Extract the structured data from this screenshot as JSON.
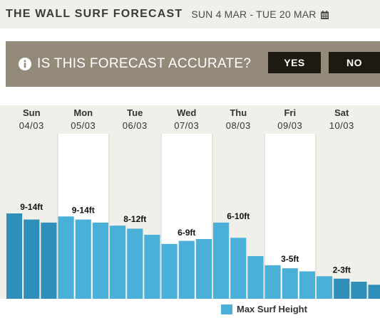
{
  "header": {
    "title": "THE WALL SURF FORECAST",
    "date_range": "SUN 4 MAR - TUE 20 MAR"
  },
  "feedback": {
    "question": "IS THIS FORECAST ACCURATE?",
    "yes_label": "YES",
    "no_label": "NO"
  },
  "days": [
    {
      "name": "Sun",
      "date": "04/03"
    },
    {
      "name": "Mon",
      "date": "05/03"
    },
    {
      "name": "Tue",
      "date": "06/03"
    },
    {
      "name": "Wed",
      "date": "07/03"
    },
    {
      "name": "Thu",
      "date": "08/03"
    },
    {
      "name": "Fri",
      "date": "09/03"
    },
    {
      "name": "Sat",
      "date": "10/03"
    }
  ],
  "legend": {
    "label": "Max Surf Height"
  },
  "colors": {
    "bar_light": "#4bb0d8",
    "bar_dark": "#2f8fb8",
    "panel": "#938a7a",
    "button": "#1e1a12"
  },
  "chart_data": {
    "type": "bar",
    "series": [
      {
        "name": "Max Surf Height",
        "values": [
          14,
          13,
          12.5,
          13.5,
          13,
          12.5,
          12,
          11.5,
          10.5,
          9,
          9.5,
          9.8,
          12.5,
          10,
          7,
          5.5,
          5,
          4.5,
          3.7,
          3.3,
          2.8,
          2.3
        ]
      }
    ],
    "dark_bars": [
      0,
      1,
      2,
      19,
      20,
      21
    ],
    "daily_labels": [
      "9-14ft",
      "9-14ft",
      "8-12ft",
      "6-9ft",
      "6-10ft",
      "3-5ft",
      "2-3ft"
    ],
    "ylim": [
      0,
      14
    ]
  }
}
